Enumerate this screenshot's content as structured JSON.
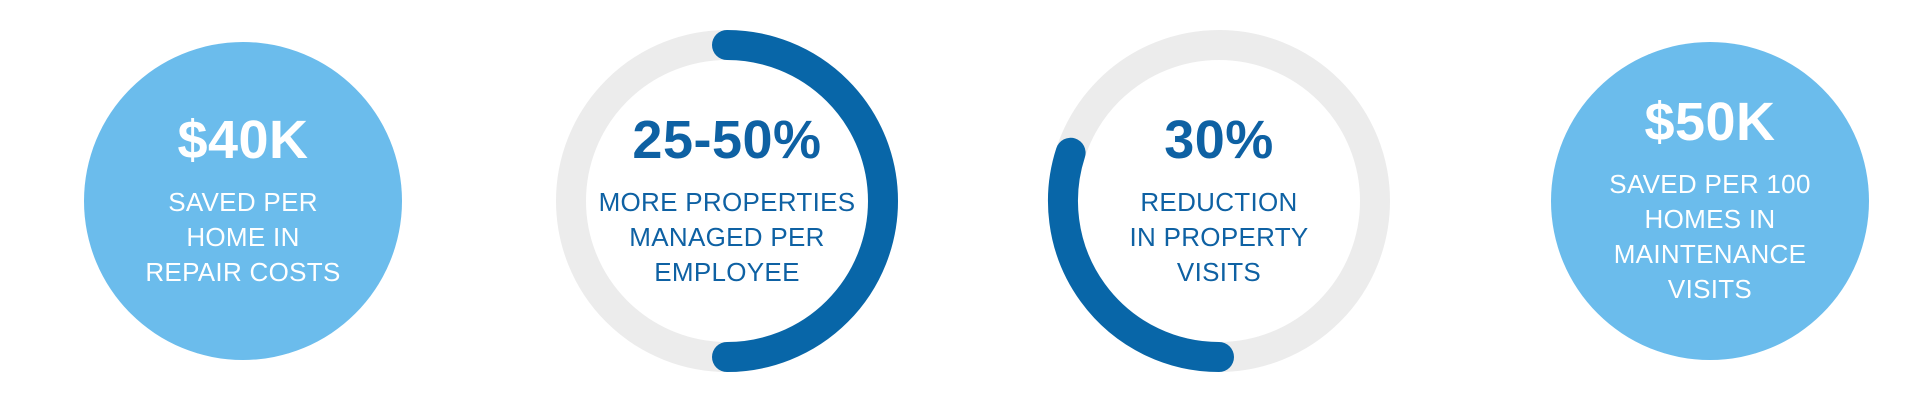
{
  "colors": {
    "solid_fill": "#6bbcec",
    "ring_track": "#ececec",
    "ring_progress": "#0866a8",
    "ring_text": "#0e61a3",
    "solid_text": "#ffffff"
  },
  "stats": [
    {
      "style": "solid",
      "value": "$40K",
      "caption": "SAVED PER\nHOME IN\nREPAIR COSTS"
    },
    {
      "style": "ring",
      "value": "25-50%",
      "caption": "MORE PROPERTIES\nMANAGED PER\nEMPLOYEE",
      "progress_fraction": 0.5,
      "progress_side": "right"
    },
    {
      "style": "ring",
      "value": "30%",
      "caption": "REDUCTION\nIN PROPERTY\nVISITS",
      "progress_fraction": 0.3,
      "progress_side": "left"
    },
    {
      "style": "solid",
      "value": "$50K",
      "caption": "SAVED PER 100\nHOMES IN\nMAINTENANCE\nVISITS"
    }
  ]
}
